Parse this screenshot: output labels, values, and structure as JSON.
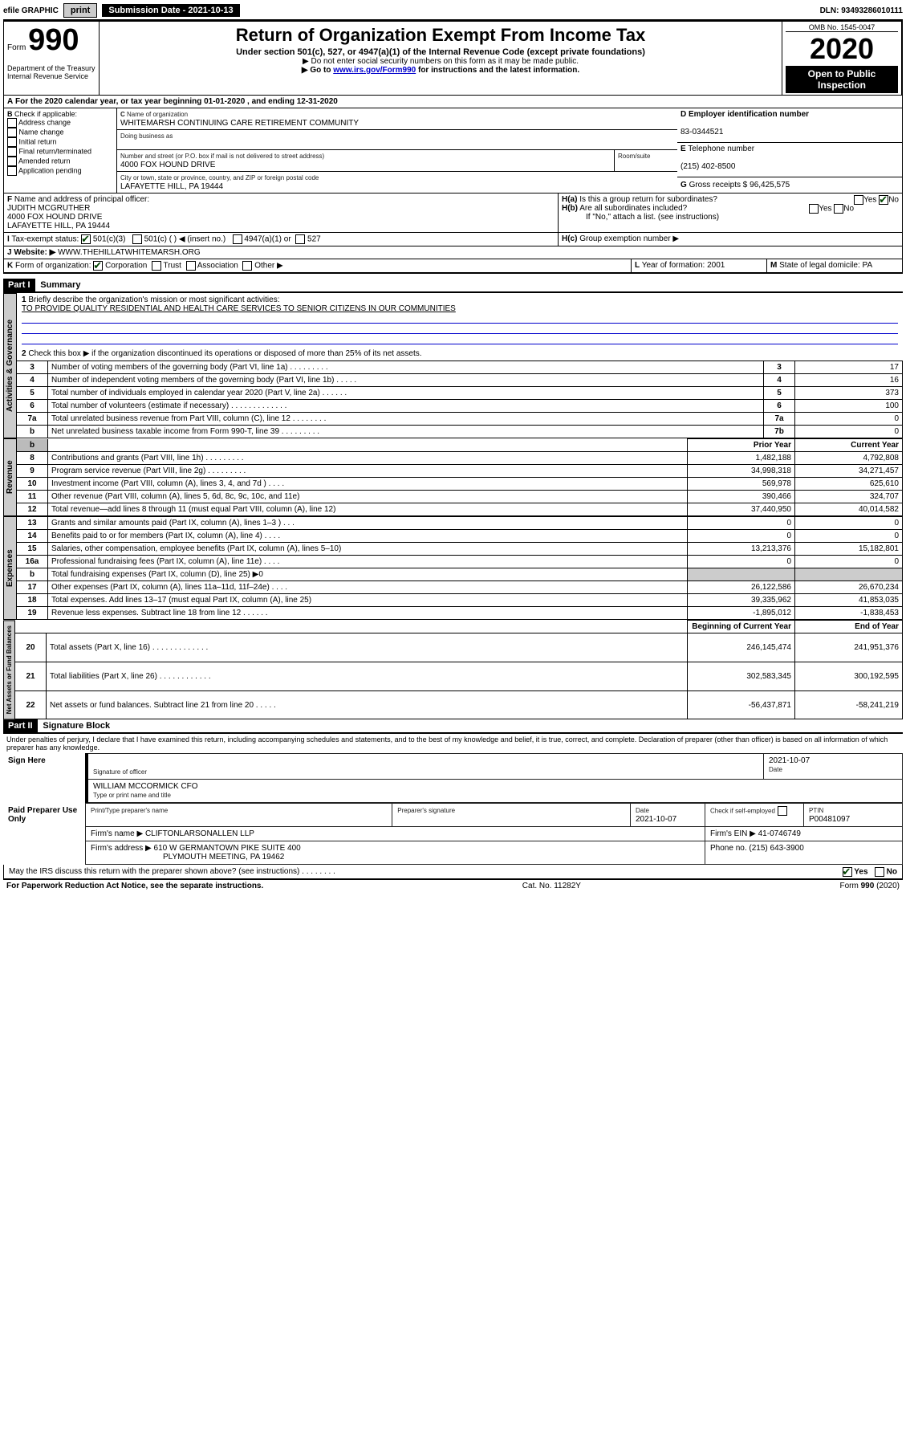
{
  "topbar": {
    "efile": "efile GRAPHIC",
    "print": "print",
    "subdate_label": "Submission Date - 2021-10-13",
    "dln": "DLN: 93493286010111"
  },
  "header": {
    "form_word": "Form",
    "form_num": "990",
    "dept": "Department of the Treasury",
    "irs": "Internal Revenue Service",
    "title": "Return of Organization Exempt From Income Tax",
    "subtitle": "Under section 501(c), 527, or 4947(a)(1) of the Internal Revenue Code (except private foundations)",
    "note1": "▶ Do not enter social security numbers on this form as it may be made public.",
    "note2_a": "▶ Go to ",
    "note2_link": "www.irs.gov/Form990",
    "note2_b": " for instructions and the latest information.",
    "omb": "OMB No. 1545-0047",
    "year": "2020",
    "open": "Open to Public Inspection"
  },
  "A": {
    "text": "For the 2020 calendar year, or tax year beginning 01-01-2020   , and ending 12-31-2020"
  },
  "B": {
    "label": "Check if applicable:",
    "items": [
      "Address change",
      "Name change",
      "Initial return",
      "Final return/terminated",
      "Amended return",
      "Application pending"
    ]
  },
  "C": {
    "name_label": "Name of organization",
    "name": "WHITEMARSH CONTINUING CARE RETIREMENT COMMUNITY",
    "dba_label": "Doing business as",
    "addr_label": "Number and street (or P.O. box if mail is not delivered to street address)",
    "room_label": "Room/suite",
    "addr": "4000 FOX HOUND DRIVE",
    "city_label": "City or town, state or province, country, and ZIP or foreign postal code",
    "city": "LAFAYETTE HILL, PA  19444"
  },
  "D": {
    "label": "Employer identification number",
    "val": "83-0344521"
  },
  "E": {
    "label": "Telephone number",
    "val": "(215) 402-8500"
  },
  "G": {
    "label": "Gross receipts $",
    "val": "96,425,575"
  },
  "F": {
    "label": "Name and address of principal officer:",
    "name": "JUDITH MCGRUTHER",
    "addr1": "4000 FOX HOUND DRIVE",
    "addr2": "LAFAYETTE HILL, PA  19444"
  },
  "H": {
    "a": "Is this a group return for subordinates?",
    "b": "Are all subordinates included?",
    "bnote": "If \"No,\" attach a list. (see instructions)",
    "c": "Group exemption number ▶",
    "yes": "Yes",
    "no": "No"
  },
  "I": {
    "label": "Tax-exempt status:",
    "o1": "501(c)(3)",
    "o2": "501(c) (  ) ◀ (insert no.)",
    "o3": "4947(a)(1) or",
    "o4": "527"
  },
  "J": {
    "label": "Website: ▶",
    "val": "WWW.THEHILLATWHITEMARSH.ORG"
  },
  "K": {
    "label": "Form of organization:",
    "o1": "Corporation",
    "o2": "Trust",
    "o3": "Association",
    "o4": "Other ▶"
  },
  "L": {
    "label": "Year of formation:",
    "val": "2001"
  },
  "M": {
    "label": "State of legal domicile:",
    "val": "PA"
  },
  "part1": {
    "label": "Part I",
    "title": "Summary",
    "q1": "Briefly describe the organization's mission or most significant activities:",
    "mission": "TO PROVIDE QUALITY RESIDENTIAL AND HEALTH CARE SERVICES TO SENIOR CITIZENS IN OUR COMMUNITIES",
    "q2": "Check this box ▶       if the organization discontinued its operations or disposed of more than 25% of its net assets.",
    "vtab1": "Activities & Governance",
    "vtab2": "Revenue",
    "vtab3": "Expenses",
    "vtab4": "Net Assets or Fund Balances",
    "col_prior": "Prior Year",
    "col_current": "Current Year",
    "col_boy": "Beginning of Current Year",
    "col_eoy": "End of Year"
  },
  "rows_gov": [
    {
      "n": "3",
      "d": "Number of voting members of the governing body (Part VI, line 1a)   .   .   .   .   .   .   .   .   .",
      "bn": "3",
      "v": "17"
    },
    {
      "n": "4",
      "d": "Number of independent voting members of the governing body (Part VI, line 1b)   .   .   .   .   .",
      "bn": "4",
      "v": "16"
    },
    {
      "n": "5",
      "d": "Total number of individuals employed in calendar year 2020 (Part V, line 2a)   .   .   .   .   .   .",
      "bn": "5",
      "v": "373"
    },
    {
      "n": "6",
      "d": "Total number of volunteers (estimate if necessary)   .   .   .   .   .   .   .   .   .   .   .   .   .",
      "bn": "6",
      "v": "100"
    },
    {
      "n": "7a",
      "d": "Total unrelated business revenue from Part VIII, column (C), line 12   .   .   .   .   .   .   .   .",
      "bn": "7a",
      "v": "0"
    },
    {
      "n": "b",
      "d": "Net unrelated business taxable income from Form 990-T, line 39   .   .   .   .   .   .   .   .   .",
      "bn": "7b",
      "v": "0"
    }
  ],
  "rows_rev": [
    {
      "n": "8",
      "d": "Contributions and grants (Part VIII, line 1h)   .   .   .   .   .   .   .   .   .",
      "p": "1,482,188",
      "c": "4,792,808"
    },
    {
      "n": "9",
      "d": "Program service revenue (Part VIII, line 2g)   .   .   .   .   .   .   .   .   .",
      "p": "34,998,318",
      "c": "34,271,457"
    },
    {
      "n": "10",
      "d": "Investment income (Part VIII, column (A), lines 3, 4, and 7d )   .   .   .   .",
      "p": "569,978",
      "c": "625,610"
    },
    {
      "n": "11",
      "d": "Other revenue (Part VIII, column (A), lines 5, 6d, 8c, 9c, 10c, and 11e)",
      "p": "390,466",
      "c": "324,707"
    },
    {
      "n": "12",
      "d": "Total revenue—add lines 8 through 11 (must equal Part VIII, column (A), line 12)",
      "p": "37,440,950",
      "c": "40,014,582"
    }
  ],
  "rows_exp": [
    {
      "n": "13",
      "d": "Grants and similar amounts paid (Part IX, column (A), lines 1–3 )   .   .   .",
      "p": "0",
      "c": "0"
    },
    {
      "n": "14",
      "d": "Benefits paid to or for members (Part IX, column (A), line 4)   .   .   .   .",
      "p": "0",
      "c": "0"
    },
    {
      "n": "15",
      "d": "Salaries, other compensation, employee benefits (Part IX, column (A), lines 5–10)",
      "p": "13,213,376",
      "c": "15,182,801"
    },
    {
      "n": "16a",
      "d": "Professional fundraising fees (Part IX, column (A), line 11e)   .   .   .   .",
      "p": "0",
      "c": "0"
    },
    {
      "n": "b",
      "d": "Total fundraising expenses (Part IX, column (D), line 25) ▶0",
      "p": "",
      "c": ""
    },
    {
      "n": "17",
      "d": "Other expenses (Part IX, column (A), lines 11a–11d, 11f–24e)   .   .   .   .",
      "p": "26,122,586",
      "c": "26,670,234"
    },
    {
      "n": "18",
      "d": "Total expenses. Add lines 13–17 (must equal Part IX, column (A), line 25)",
      "p": "39,335,962",
      "c": "41,853,035"
    },
    {
      "n": "19",
      "d": "Revenue less expenses. Subtract line 18 from line 12   .   .   .   .   .   .",
      "p": "-1,895,012",
      "c": "-1,838,453"
    }
  ],
  "rows_net": [
    {
      "n": "20",
      "d": "Total assets (Part X, line 16)   .   .   .   .   .   .   .   .   .   .   .   .   .",
      "p": "246,145,474",
      "c": "241,951,376"
    },
    {
      "n": "21",
      "d": "Total liabilities (Part X, line 26)   .   .   .   .   .   .   .   .   .   .   .   .",
      "p": "302,583,345",
      "c": "300,192,595"
    },
    {
      "n": "22",
      "d": "Net assets or fund balances. Subtract line 21 from line 20   .   .   .   .   .",
      "p": "-56,437,871",
      "c": "-58,241,219"
    }
  ],
  "part2": {
    "label": "Part II",
    "title": "Signature Block",
    "decl": "Under penalties of perjury, I declare that I have examined this return, including accompanying schedules and statements, and to the best of my knowledge and belief, it is true, correct, and complete. Declaration of preparer (other than officer) is based on all information of which preparer has any knowledge."
  },
  "sign": {
    "label": "Sign Here",
    "sigoff": "Signature of officer",
    "date": "2021-10-07",
    "date_label": "Date",
    "name": "WILLIAM MCCORMICK CFO",
    "name_label": "Type or print name and title"
  },
  "prep": {
    "label": "Paid Preparer Use Only",
    "h1": "Print/Type preparer's name",
    "h2": "Preparer's signature",
    "h3": "Date",
    "date": "2021-10-07",
    "h4": "Check       if self-employed",
    "h5": "PTIN",
    "ptin": "P00481097",
    "firm_label": "Firm's name    ▶",
    "firm": "CLIFTONLARSONALLEN LLP",
    "ein_label": "Firm's EIN ▶",
    "ein": "41-0746749",
    "addr_label": "Firm's address ▶",
    "addr1": "610 W GERMANTOWN PIKE SUITE 400",
    "addr2": "PLYMOUTH MEETING, PA  19462",
    "phone_label": "Phone no.",
    "phone": "(215) 643-3900"
  },
  "discuss": {
    "q": "May the IRS discuss this return with the preparer shown above? (see instructions)   .   .   .   .   .   .   .   .",
    "yes": "Yes",
    "no": "No"
  },
  "footer": {
    "left": "For Paperwork Reduction Act Notice, see the separate instructions.",
    "mid": "Cat. No. 11282Y",
    "right": "Form 990 (2020)"
  }
}
